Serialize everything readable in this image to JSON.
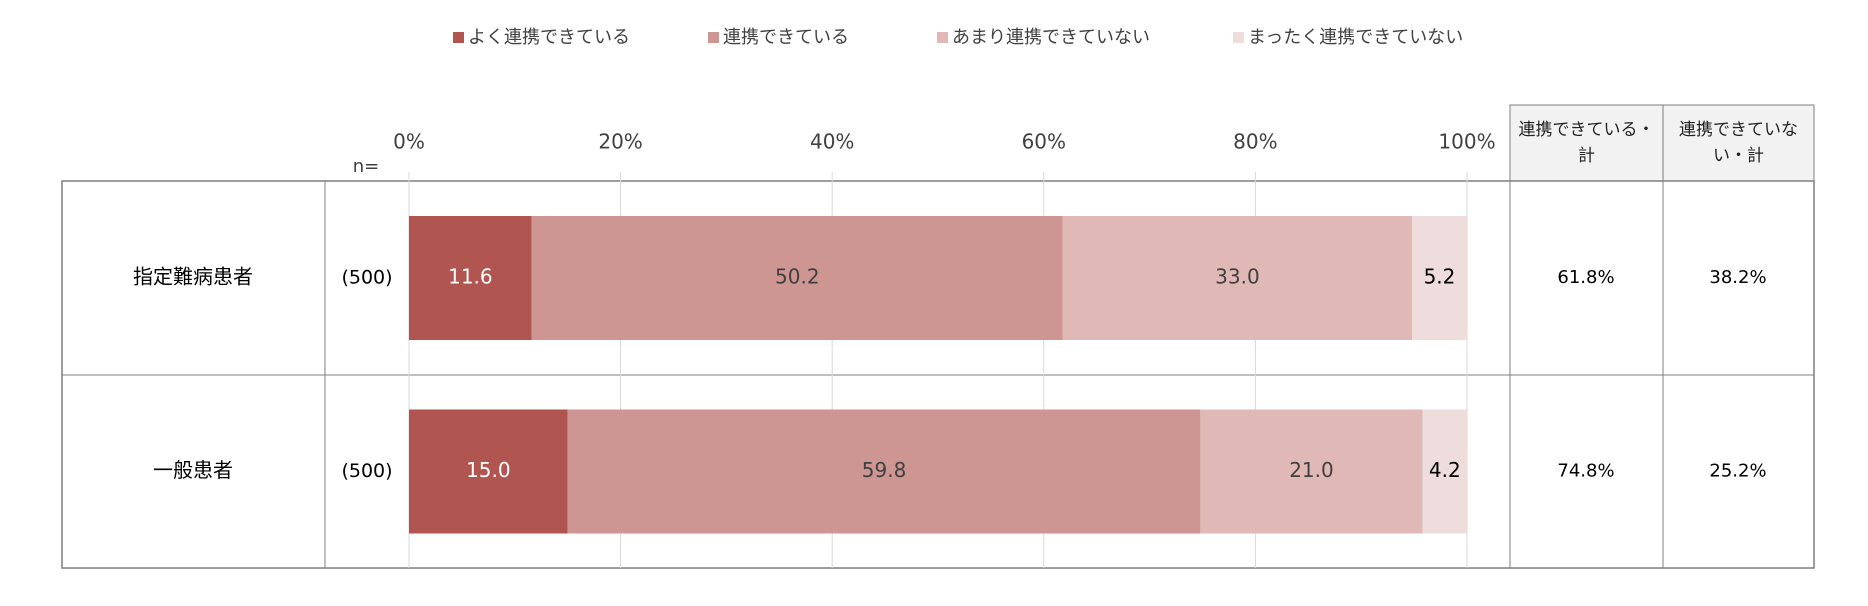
{
  "chart_data": {
    "type": "stacked_bar_horizontal",
    "categories": [
      "指定難病患者",
      "一般患者"
    ],
    "n_label": "n=",
    "n_values": [
      "(500)",
      "(500)"
    ],
    "series": [
      {
        "name": "よく連携できている",
        "color": "#b0554f",
        "label_color": "#ffffff",
        "values": [
          11.6,
          15.0
        ],
        "value_labels": [
          "11.6",
          "15.0"
        ]
      },
      {
        "name": "連携できている",
        "color": "#cd9693",
        "label_color": "#404040",
        "values": [
          50.2,
          59.8
        ],
        "value_labels": [
          "50.2",
          "59.8"
        ]
      },
      {
        "name": "あまり連携できていない",
        "color": "#e0b9b7",
        "label_color": "#404040",
        "values": [
          33.0,
          21.0
        ],
        "value_labels": [
          "33.0",
          "21.0"
        ]
      },
      {
        "name": "まったく連携できていない",
        "color": "#efdcdc",
        "label_color": "#000000",
        "values": [
          5.2,
          4.2
        ],
        "value_labels": [
          "5.2",
          "4.2"
        ]
      }
    ],
    "xlim": [
      0,
      100
    ],
    "xticks": [
      {
        "value": 0,
        "label": "0%"
      },
      {
        "value": 20,
        "label": "20%"
      },
      {
        "value": 40,
        "label": "40%"
      },
      {
        "value": 60,
        "label": "60%"
      },
      {
        "value": 80,
        "label": "80%"
      },
      {
        "value": 100,
        "label": "100%"
      }
    ],
    "grid": true,
    "legend": "top",
    "table": {
      "headers": [
        "連携できている・計",
        "連携できていない・計"
      ],
      "rows": [
        [
          "61.8%",
          "38.2%"
        ],
        [
          "74.8%",
          "25.2%"
        ]
      ]
    }
  }
}
